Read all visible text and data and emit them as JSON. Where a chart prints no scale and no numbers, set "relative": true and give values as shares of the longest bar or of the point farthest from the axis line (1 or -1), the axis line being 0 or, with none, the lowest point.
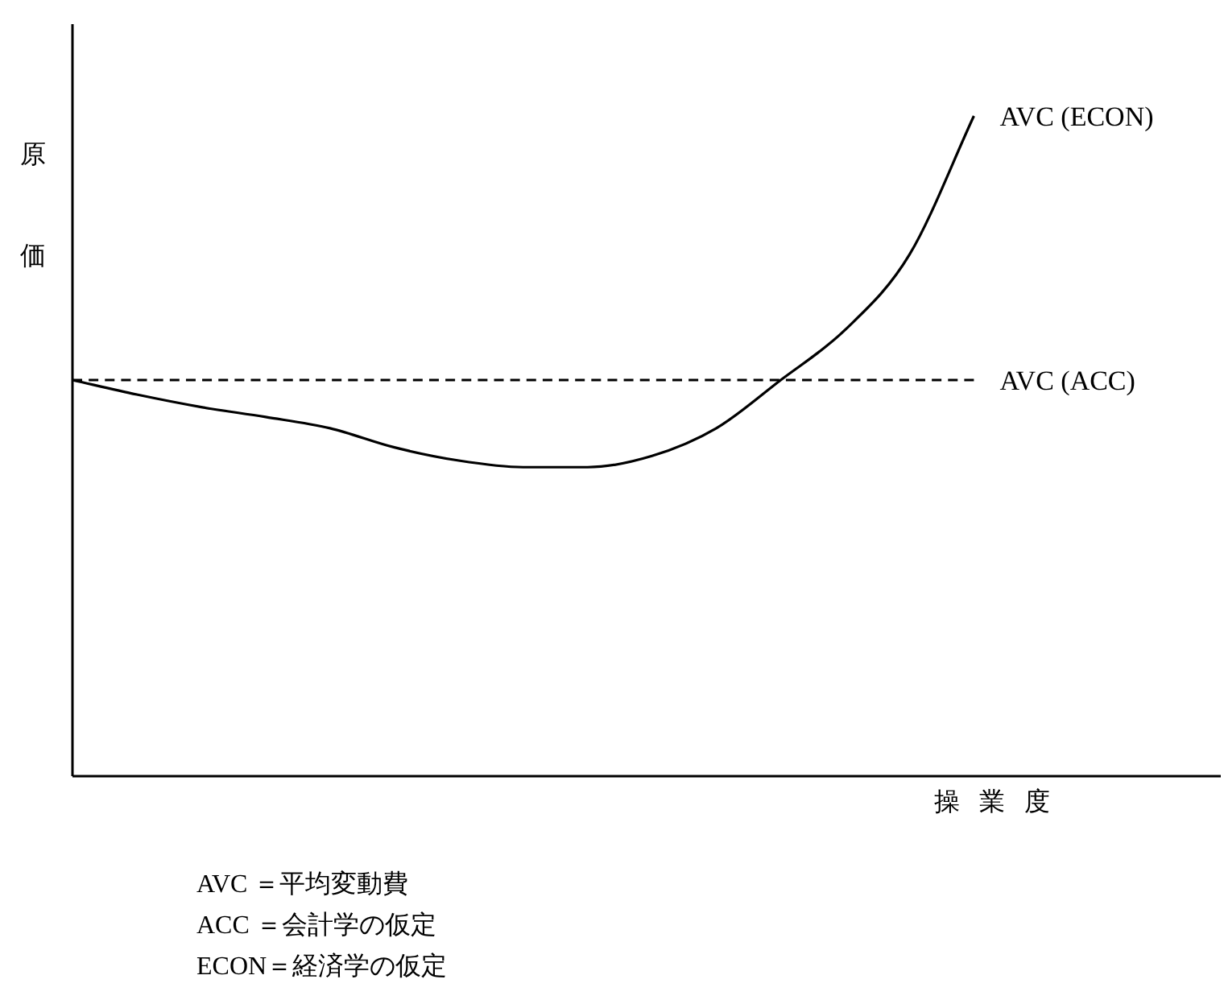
{
  "chart_data": {
    "type": "line",
    "relative": true,
    "ylabel": "原価",
    "xlabel": "操業度",
    "categories": [
      null,
      null,
      null,
      null,
      null,
      null,
      null,
      null,
      null,
      null,
      null,
      null,
      null,
      null,
      null
    ],
    "series": [
      {
        "name": "AVC (ECON)",
        "color": "#000000",
        "line_style": "solid",
        "values": [
          0.6,
          0.578,
          0.559,
          0.544,
          0.527,
          0.498,
          0.478,
          0.468,
          0.468,
          0.485,
          0.527,
          0.6,
          0.676,
          0.79,
          1.0
        ]
      },
      {
        "name": "AVC (ACC)",
        "color": "#000000",
        "line_style": "dashed",
        "values": [
          0.6,
          0.6,
          0.6,
          0.6,
          0.6,
          0.6,
          0.6,
          0.6,
          0.6,
          0.6,
          0.6,
          0.6,
          0.6,
          0.6,
          0.6
        ]
      }
    ],
    "annotations": [
      "AVC ＝平均変動費",
      "ACC ＝会計学の仮定",
      "ECON＝経済学の仮定"
    ]
  }
}
